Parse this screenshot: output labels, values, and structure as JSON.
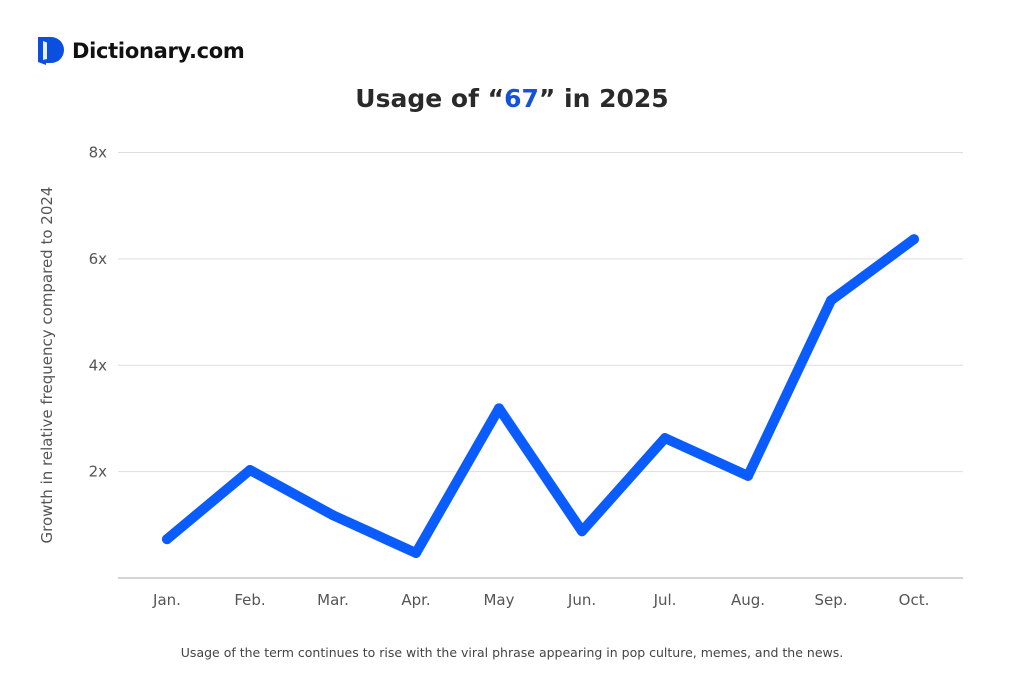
{
  "brand": {
    "name": "Dictionary.com",
    "color": "#0b4fe0"
  },
  "title": {
    "prefix": "Usage of “",
    "highlight": "67",
    "suffix": "” in 2025",
    "highlight_color": "#1452d6"
  },
  "caption": "Usage of the term continues to rise with the viral phrase appearing in pop culture, memes, and the news.",
  "chart_data": {
    "type": "line",
    "title": "Usage of “67” in 2025",
    "xlabel": "",
    "ylabel": "Growth in relative frequency compared to 2024",
    "categories": [
      "Jan.",
      "Feb.",
      "Mar.",
      "Apr.",
      "May",
      "Jun.",
      "Jul.",
      "Aug.",
      "Sep.",
      "Oct."
    ],
    "values": [
      0.73,
      2.03,
      1.18,
      0.47,
      3.19,
      0.88,
      2.63,
      1.92,
      5.22,
      6.37
    ],
    "ylim": [
      0,
      8
    ],
    "yticks": [
      {
        "value": 2,
        "label": "2x"
      },
      {
        "value": 4,
        "label": "4x"
      },
      {
        "value": 6,
        "label": "6x"
      },
      {
        "value": 8,
        "label": "8x"
      }
    ],
    "grid": true,
    "line_color": "#0a5cff"
  }
}
